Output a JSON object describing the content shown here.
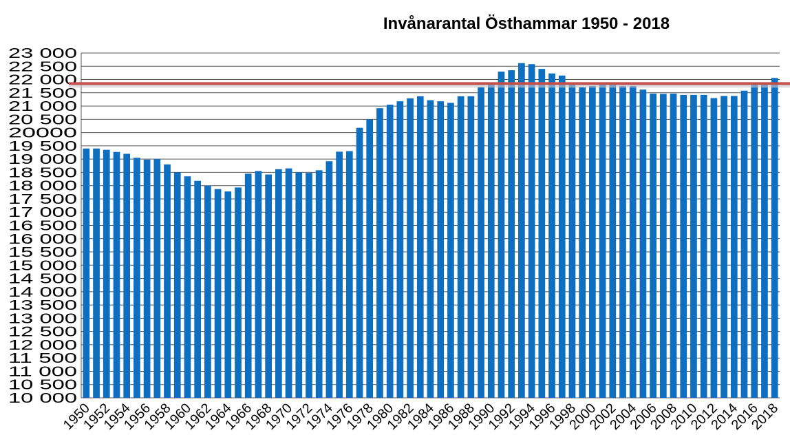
{
  "chart_data": {
    "type": "bar",
    "title": "Invånarantal  Östhammar 1950 - 2018",
    "categories": [
      "1950",
      null,
      "1952",
      null,
      "1954",
      null,
      "1956",
      null,
      "1958",
      null,
      "1960",
      null,
      "1962",
      null,
      "1964",
      null,
      "1966",
      null,
      "1968",
      null,
      "1970",
      null,
      "1972",
      null,
      "1974",
      null,
      "1976",
      null,
      "1978",
      null,
      "1980",
      null,
      "1982",
      null,
      "1984",
      null,
      "1986",
      null,
      "1988",
      null,
      "1990",
      null,
      "1992",
      null,
      "1994",
      null,
      "1996",
      null,
      "1998",
      null,
      "2000",
      null,
      "2002",
      null,
      "2004",
      null,
      "2006",
      null,
      "2008",
      null,
      "2010",
      null,
      "2012",
      null,
      "2014",
      null,
      "2016",
      null,
      "2018"
    ],
    "values": [
      19400,
      19400,
      19350,
      19270,
      19200,
      19050,
      18980,
      19000,
      18800,
      18500,
      18350,
      18180,
      18000,
      17870,
      17780,
      17930,
      18450,
      18550,
      18420,
      18620,
      18650,
      18500,
      18480,
      18580,
      18920,
      19280,
      19300,
      20180,
      20500,
      20920,
      21050,
      21180,
      21290,
      21370,
      21220,
      21180,
      21120,
      21370,
      21370,
      21720,
      21880,
      22300,
      22350,
      22620,
      22580,
      22400,
      22230,
      22150,
      21850,
      21720,
      21760,
      21850,
      21850,
      21760,
      21760,
      21620,
      21470,
      21460,
      21470,
      21420,
      21420,
      21420,
      21300,
      21380,
      21380,
      21580,
      21850,
      21850,
      22060
    ],
    "color": "#0e6fc1",
    "ylim": [
      10000,
      23000
    ],
    "yticks": [
      {
        "value": 10000,
        "label": "10 000"
      },
      {
        "value": 10500,
        "label": "10 500"
      },
      {
        "value": 11000,
        "label": "11 000"
      },
      {
        "value": 11500,
        "label": "11 500"
      },
      {
        "value": 12000,
        "label": "12 000"
      },
      {
        "value": 12500,
        "label": "12 500"
      },
      {
        "value": 13000,
        "label": "13 000"
      },
      {
        "value": 13500,
        "label": "13 500"
      },
      {
        "value": 14000,
        "label": "14 000"
      },
      {
        "value": 14500,
        "label": "14 500"
      },
      {
        "value": 15000,
        "label": "15 000"
      },
      {
        "value": 15500,
        "label": "15 500"
      },
      {
        "value": 16000,
        "label": "16 000"
      },
      {
        "value": 16500,
        "label": "16 500"
      },
      {
        "value": 17000,
        "label": "17 000"
      },
      {
        "value": 17500,
        "label": "17 500"
      },
      {
        "value": 18000,
        "label": "18 000"
      },
      {
        "value": 18500,
        "label": "18 500"
      },
      {
        "value": 19000,
        "label": "19 000"
      },
      {
        "value": 19500,
        "label": "19 500"
      },
      {
        "value": 20000,
        "label": "20000"
      },
      {
        "value": 20500,
        "label": "20 500"
      },
      {
        "value": 21000,
        "label": "21 000"
      },
      {
        "value": 21500,
        "label": "21 500"
      },
      {
        "value": 22000,
        "label": "22 000"
      },
      {
        "value": 22500,
        "label": "22 500"
      },
      {
        "value": 23000,
        "label": "23 000"
      }
    ],
    "grid": true,
    "reference_line": {
      "value": 21850,
      "color": "#c0504d"
    }
  }
}
